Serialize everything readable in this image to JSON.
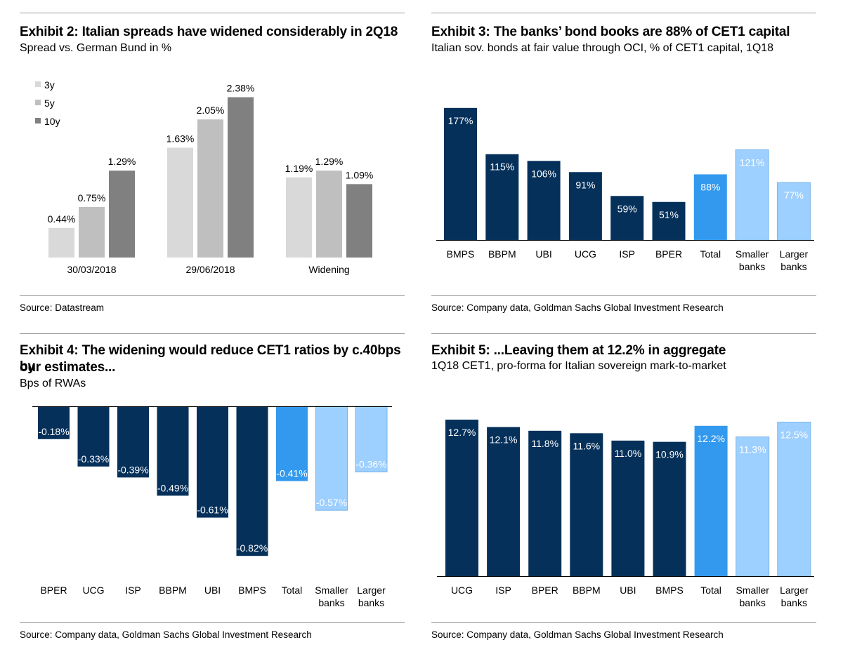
{
  "colors": {
    "navy": "#05305a",
    "blue": "#3399ee",
    "light_blue": "#9dcfff",
    "bar_3y": "#d9d9d9",
    "bar_5y": "#bfbfbf",
    "bar_10y": "#808080"
  },
  "chart_data": [
    {
      "type": "bar",
      "title": "Exhibit 2: Italian spreads have widened considerably in 2Q18",
      "subtitle": "Spread vs. German Bund in %",
      "source": "Source: Datastream",
      "categories": [
        "30/03/2018",
        "29/06/2018",
        "Widening"
      ],
      "series": [
        {
          "name": "3y",
          "values": [
            0.44,
            1.63,
            1.19
          ],
          "labels": [
            "0.44%",
            "1.63%",
            "1.19%"
          ],
          "color": "#d9d9d9"
        },
        {
          "name": "5y",
          "values": [
            0.75,
            2.05,
            1.29
          ],
          "labels": [
            "0.75%",
            "2.05%",
            "1.29%"
          ],
          "color": "#bfbfbf"
        },
        {
          "name": "10y",
          "values": [
            1.29,
            2.38,
            1.09
          ],
          "labels": [
            "1.29%",
            "2.38%",
            "1.09%"
          ],
          "color": "#808080"
        }
      ],
      "legend": "top-left",
      "ylim": [
        0,
        2.5
      ],
      "grid": false
    },
    {
      "type": "bar",
      "title": "Exhibit 3: The banks’ bond books are 88% of CET1 capital",
      "subtitle": "Italian sov. bonds at fair value through OCI, % of CET1 capital, 1Q18",
      "source": "Source: Company data, Goldman Sachs Global Investment Research",
      "categories": [
        "BMPS",
        "BBPM",
        "UBI",
        "UCG",
        "ISP",
        "BPER",
        "Total",
        "Smaller banks",
        "Larger banks"
      ],
      "category_lines": [
        [
          "BMPS"
        ],
        [
          "BBPM"
        ],
        [
          "UBI"
        ],
        [
          "UCG"
        ],
        [
          "ISP"
        ],
        [
          "BPER"
        ],
        [
          "Total"
        ],
        [
          "Smaller",
          "banks"
        ],
        [
          "Larger",
          "banks"
        ]
      ],
      "values": [
        177,
        115,
        106,
        91,
        59,
        51,
        88,
        121,
        77
      ],
      "labels": [
        "177%",
        "115%",
        "106%",
        "91%",
        "59%",
        "51%",
        "88%",
        "121%",
        "77%"
      ],
      "color_groups": [
        "navy",
        "navy",
        "navy",
        "navy",
        "navy",
        "navy",
        "blue",
        "light",
        "light"
      ],
      "ylim": [
        0,
        190
      ],
      "grid": false
    },
    {
      "type": "bar",
      "title": "Exhibit 4: The widening would reduce CET1 ratios by c.40bps by our estimates...",
      "title_lines": [
        "Exhibit 4: The widening would reduce CET1 ratios by c.40bps by",
        "our estimates..."
      ],
      "subtitle": "Bps of RWAs",
      "source": "Source: Company data, Goldman Sachs Global Investment Research",
      "categories": [
        "BPER",
        "UCG",
        "ISP",
        "BBPM",
        "UBI",
        "BMPS",
        "Total",
        "Smaller banks",
        "Larger banks"
      ],
      "category_lines": [
        [
          "BPER"
        ],
        [
          "UCG"
        ],
        [
          "ISP"
        ],
        [
          "BBPM"
        ],
        [
          "UBI"
        ],
        [
          "BMPS"
        ],
        [
          "Total"
        ],
        [
          "Smaller",
          "banks"
        ],
        [
          "Larger",
          "banks"
        ]
      ],
      "values": [
        -0.18,
        -0.33,
        -0.39,
        -0.49,
        -0.61,
        -0.82,
        -0.41,
        -0.57,
        -0.36
      ],
      "labels": [
        "-0.18%",
        "-0.33%",
        "-0.39%",
        "-0.49%",
        "-0.61%",
        "-0.82%",
        "-0.41%",
        "-0.57%",
        "-0.36%"
      ],
      "color_groups": [
        "navy",
        "navy",
        "navy",
        "navy",
        "navy",
        "navy",
        "blue",
        "light",
        "light"
      ],
      "ylim": [
        -0.85,
        0
      ],
      "grid": false
    },
    {
      "type": "bar",
      "title": "Exhibit 5: ...Leaving them at 12.2% in aggregate",
      "subtitle": "1Q18 CET1, pro-forma for Italian sovereign mark-to-market",
      "source": "Source: Company data, Goldman Sachs Global Investment Research",
      "categories": [
        "UCG",
        "ISP",
        "BPER",
        "BBPM",
        "UBI",
        "BMPS",
        "Total",
        "Smaller banks",
        "Larger banks"
      ],
      "category_lines": [
        [
          "UCG"
        ],
        [
          "ISP"
        ],
        [
          "BPER"
        ],
        [
          "BBPM"
        ],
        [
          "UBI"
        ],
        [
          "BMPS"
        ],
        [
          "Total"
        ],
        [
          "Smaller",
          "banks"
        ],
        [
          "Larger",
          "banks"
        ]
      ],
      "values": [
        12.7,
        12.1,
        11.8,
        11.6,
        11.0,
        10.9,
        12.2,
        11.3,
        12.5
      ],
      "labels": [
        "12.7%",
        "12.1%",
        "11.8%",
        "11.6%",
        "11.0%",
        "10.9%",
        "12.2%",
        "11.3%",
        "12.5%"
      ],
      "color_groups": [
        "navy",
        "navy",
        "navy",
        "navy",
        "navy",
        "navy",
        "blue",
        "light",
        "light"
      ],
      "ylim": [
        0,
        13.5
      ],
      "grid": false
    }
  ]
}
